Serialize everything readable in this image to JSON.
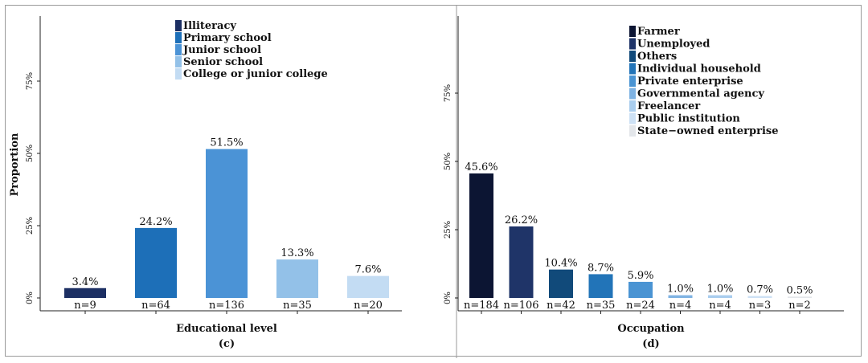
{
  "y_axis_label": "Proportion",
  "chart_data": [
    {
      "type": "bar",
      "panel": "(c)",
      "xlabel": "Educational level",
      "ylabel": "Proportion",
      "ylim": [
        0,
        1
      ],
      "yticks": [
        "0%",
        "25%",
        "50%",
        "75%"
      ],
      "legend_position": "top-center",
      "categories": [
        "Illiteracy",
        "Primary school",
        "Junior school",
        "Senior school",
        "College or junior college"
      ],
      "values": [
        3.4,
        24.2,
        51.5,
        13.3,
        7.6
      ],
      "value_labels": [
        "3.4%",
        "24.2%",
        "51.5%",
        "13.3%",
        "7.6%"
      ],
      "counts": [
        "n=9",
        "n=64",
        "n=136",
        "n=35",
        "n=20"
      ],
      "colors": [
        "#1c2f63",
        "#1d6fb8",
        "#4b93d6",
        "#93c1e8",
        "#c3dcf3"
      ]
    },
    {
      "type": "bar",
      "panel": "(d)",
      "xlabel": "Occupation",
      "ylabel": "",
      "ylim": [
        0,
        1
      ],
      "yticks": [
        "0%",
        "25%",
        "50%",
        "75%"
      ],
      "legend_position": "top-center",
      "categories": [
        "Farmer",
        "Unemployed",
        "Others",
        "Individual household",
        "Private enterprise",
        "Governmental agency",
        "Freelancer",
        "Public institution",
        "State−owned enterprise"
      ],
      "values": [
        45.6,
        26.2,
        10.4,
        8.7,
        5.9,
        1.0,
        1.0,
        0.7,
        0.5
      ],
      "value_labels": [
        "45.6%",
        "26.2%",
        "10.4%",
        "8.7%",
        "5.9%",
        "1.0%",
        "1.0%",
        "0.7%",
        "0.5%"
      ],
      "counts": [
        "n=184",
        "n=106",
        "n=42",
        "n=35",
        "n=24",
        "n=4",
        "n=4",
        "n=3",
        "n=2"
      ],
      "colors": [
        "#0c1533",
        "#1f3468",
        "#114a7a",
        "#2274b8",
        "#4a94d3",
        "#7fb3e3",
        "#a9cdee",
        "#cde1f5",
        "#e3e6ea"
      ]
    }
  ]
}
